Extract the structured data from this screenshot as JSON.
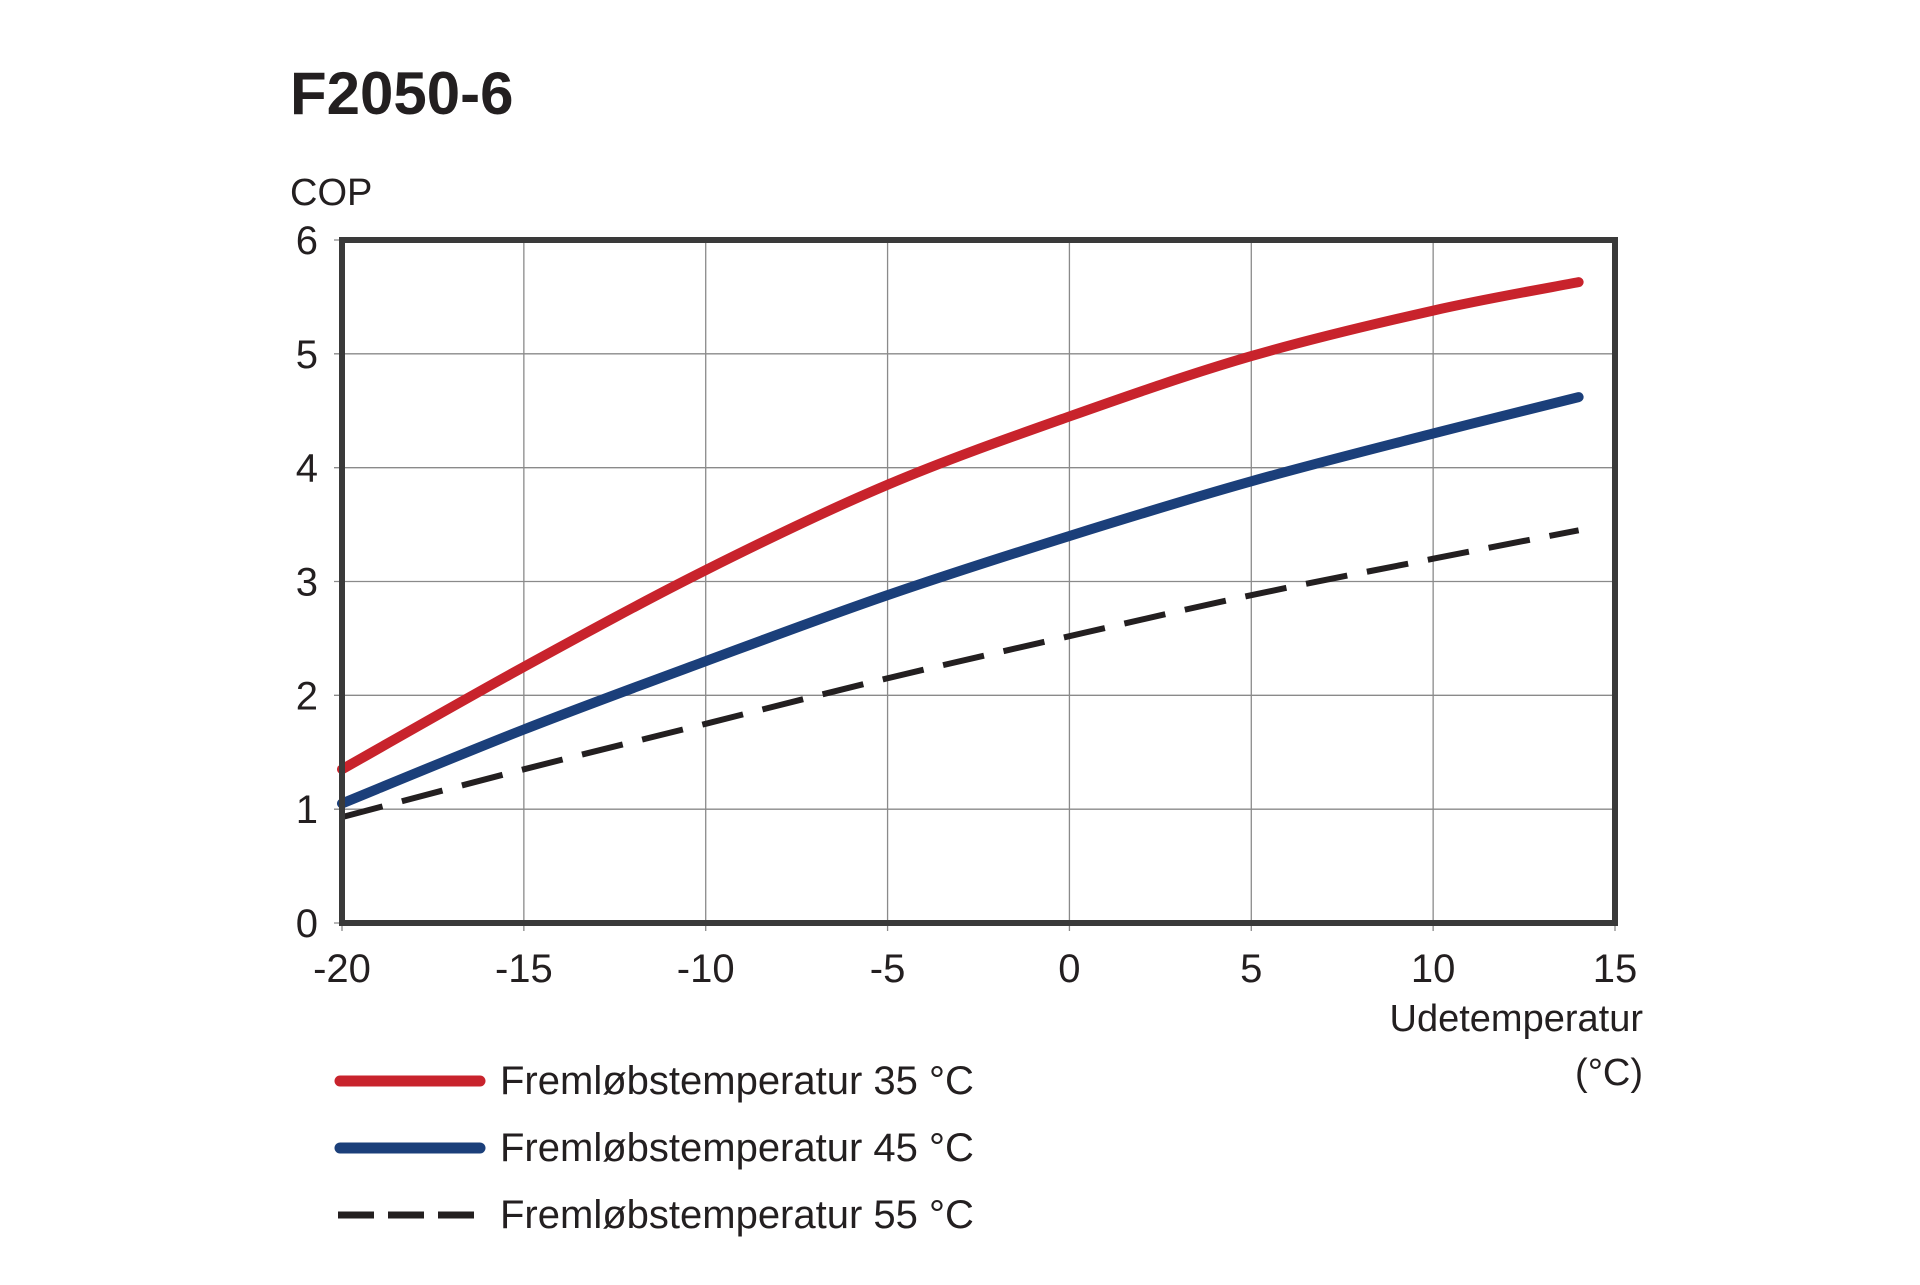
{
  "chart_data": {
    "type": "line",
    "title": "F2050-6",
    "xlabel": "Udetemperatur",
    "xlabel_unit": "(°C)",
    "ylabel": "COP",
    "xlim": [
      -20,
      15
    ],
    "ylim": [
      0,
      6
    ],
    "grid": true,
    "x_ticks": [
      "-20",
      "-15",
      "-10",
      "-5",
      "0",
      "5",
      "10",
      "15"
    ],
    "y_ticks": [
      "0",
      "1",
      "2",
      "3",
      "4",
      "5",
      "6"
    ],
    "legend_position": "bottom-left",
    "x": [
      -20,
      -15,
      -10,
      -5,
      0,
      5,
      10,
      14
    ],
    "series": [
      {
        "name": "Fremløbstemperatur 35 °C",
        "color": "#c8232c",
        "style": "solid",
        "values": [
          1.35,
          2.25,
          3.1,
          3.85,
          4.45,
          4.98,
          5.38,
          5.63
        ]
      },
      {
        "name": "Fremløbstemperatur 45 °C",
        "color": "#1b3f7a",
        "style": "solid",
        "values": [
          1.05,
          1.7,
          2.3,
          2.88,
          3.4,
          3.88,
          4.3,
          4.62
        ]
      },
      {
        "name": "Fremløbstemperatur 55 °C",
        "color": "#231f20",
        "style": "dashed",
        "values": [
          0.93,
          1.35,
          1.75,
          2.15,
          2.52,
          2.88,
          3.2,
          3.45
        ]
      }
    ]
  }
}
